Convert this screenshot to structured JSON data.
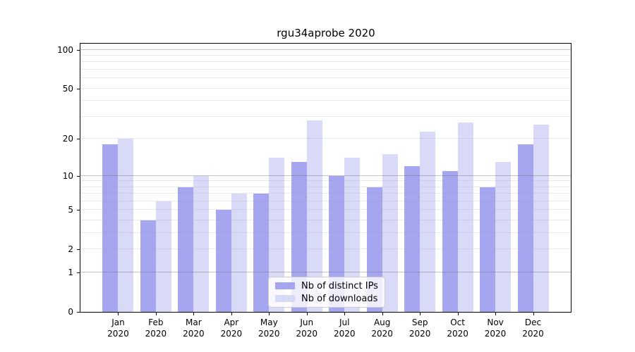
{
  "title": "rgu34aprobe 2020",
  "legend": {
    "items": [
      {
        "label": "Nb of distinct IPs",
        "color": "#a5a5f0"
      },
      {
        "label": "Nb of downloads",
        "color": "#d9d9f8"
      }
    ]
  },
  "chart_data": {
    "type": "bar",
    "title": "rgu34aprobe 2020",
    "categories": [
      "Jan",
      "Feb",
      "Mar",
      "Apr",
      "May",
      "Jun",
      "Jul",
      "Aug",
      "Sep",
      "Oct",
      "Nov",
      "Dec"
    ],
    "category_sublabel": "2020",
    "series": [
      {
        "name": "Nb of distinct IPs",
        "color": "#a5a5f0",
        "values": [
          18,
          4,
          8,
          5,
          7,
          13,
          10,
          8,
          12,
          11,
          8,
          18
        ]
      },
      {
        "name": "Nb of downloads",
        "color": "#d9d9f8",
        "values": [
          20,
          6,
          10,
          7,
          14,
          28,
          14,
          15,
          23,
          27,
          13,
          26
        ]
      }
    ],
    "y_axis": {
      "scale": "log10(1+y)",
      "tick_labels": [
        0,
        1,
        2,
        5,
        10,
        20,
        50,
        100
      ],
      "major_gridlines": [
        1,
        10,
        100
      ],
      "minor_gridlines": [
        2,
        3,
        4,
        5,
        6,
        7,
        8,
        9,
        20,
        30,
        40,
        50,
        60,
        70,
        80,
        90
      ],
      "range": [
        0,
        114
      ]
    },
    "legend_position": "lower center",
    "grid": "horizontal"
  }
}
